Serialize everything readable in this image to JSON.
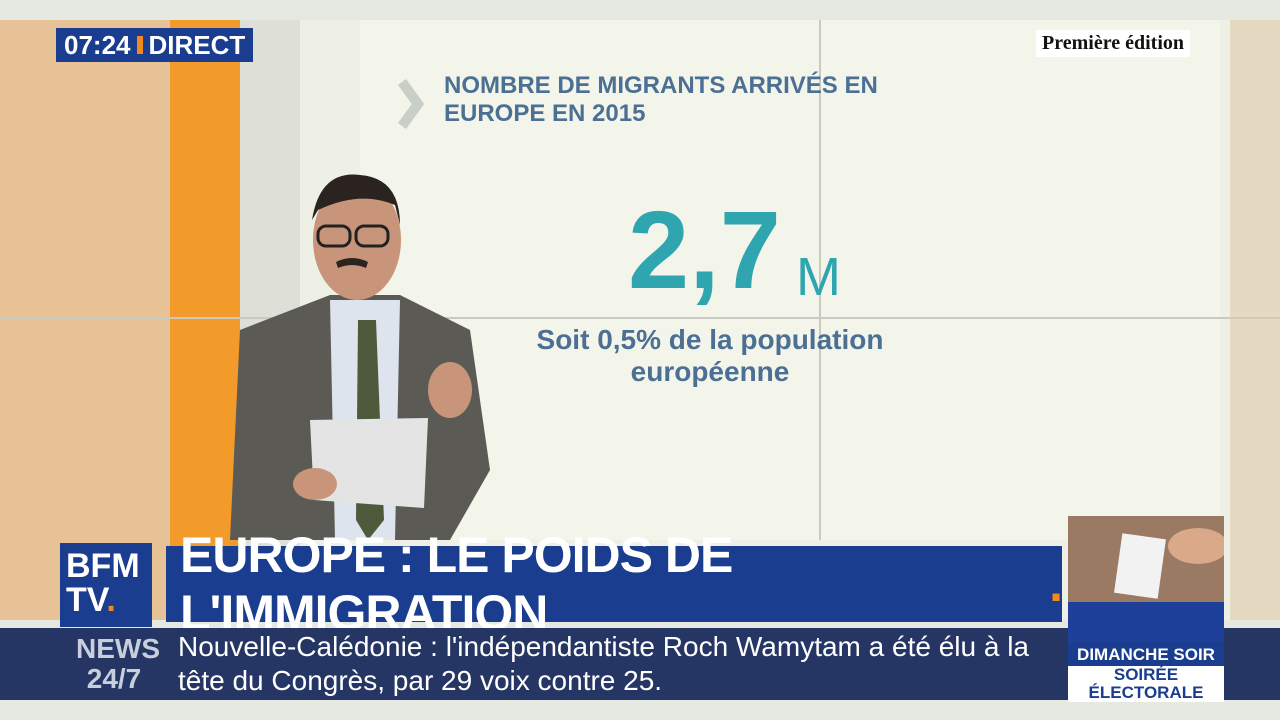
{
  "header": {
    "time": "07:24",
    "live": "DIRECT",
    "show": "Première édition"
  },
  "screen": {
    "title_lines": [
      "NOMBRE DE MIGRANTS ARRIVÉS EN",
      "EUROPE EN 2015"
    ],
    "figure": "2,7",
    "unit": "M",
    "caption_lines": [
      "Soit 0,5% de la population",
      "européenne"
    ]
  },
  "logo": {
    "lines": [
      "BFM",
      "TV"
    ],
    "dot": "."
  },
  "banner": {
    "headline": "EUROPE : LE POIDS DE L'IMMIGRATION",
    "dot": "."
  },
  "ticker": {
    "label_lines": [
      "NEWS",
      "24/7"
    ],
    "lines": [
      "Nouvelle-Calédonie : l'indépendantiste Roch Wamytam a été élu à la",
      "tête du Congrès, par 29 voix contre 25."
    ]
  },
  "promo": {
    "lines": [
      "DIMANCHE SOIR",
      "SOIRÉE",
      "ÉLECTORALE"
    ]
  }
}
